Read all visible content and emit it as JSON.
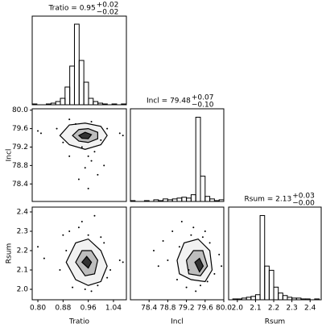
{
  "chart_data": [
    {
      "type": "histogram",
      "title": {
        "text": "Tratio = 0.95",
        "upper": "+0.02",
        "lower": "−0.02"
      },
      "bins": [
        0.78,
        0.795,
        0.81,
        0.825,
        0.84,
        0.855,
        0.87,
        0.885,
        0.9,
        0.915,
        0.93,
        0.945,
        0.96,
        0.975,
        0.99,
        1.005,
        1.02,
        1.035,
        1.05,
        1.065,
        1.08
      ],
      "values": [
        1,
        0,
        0,
        1,
        2,
        4,
        8,
        22,
        48,
        100,
        55,
        28,
        8,
        4,
        2,
        1,
        0,
        1,
        0,
        1
      ],
      "xlim": [
        0.78,
        1.081
      ],
      "ylim": [
        0,
        110
      ],
      "color": "#000000"
    },
    {
      "type": "scatter",
      "xlim": [
        0.782,
        1.081
      ],
      "ylim": [
        78.02,
        80.03
      ],
      "yticks": [
        78.4,
        78.8,
        79.2,
        79.6,
        {
          "value": 80,
          "label": "80.0"
        }
      ],
      "ylabel": "Incl",
      "points": {
        "x": [
          0.8,
          0.81,
          0.86,
          0.88,
          0.9,
          0.92,
          0.94,
          0.96,
          0.97,
          0.98,
          1.0,
          1.01,
          0.99,
          0.93,
          0.96,
          1.02,
          1.06,
          1.07,
          0.9,
          0.97,
          0.95
        ],
        "y": [
          79.55,
          79.5,
          79.6,
          79.3,
          79.0,
          79.7,
          79.2,
          79.0,
          78.9,
          79.1,
          79.35,
          78.8,
          78.6,
          78.5,
          78.3,
          79.6,
          79.5,
          79.45,
          79.8,
          79.75,
          78.75
        ]
      },
      "contours": [
        {
          "fill": "#f2f2f2",
          "x": [
            0.87,
            0.9,
            0.95,
            1.0,
            1.02,
            1.0,
            0.95,
            0.9,
            0.87
          ],
          "y": [
            79.45,
            79.68,
            79.72,
            79.65,
            79.45,
            79.25,
            79.15,
            79.25,
            79.45
          ]
        },
        {
          "fill": "#bdbdbd",
          "x": [
            0.91,
            0.93,
            0.96,
            0.99,
            0.99,
            0.96,
            0.93,
            0.91
          ],
          "y": [
            79.45,
            79.58,
            79.6,
            79.52,
            79.38,
            79.3,
            79.33,
            79.45
          ]
        },
        {
          "fill": "#333333",
          "x": [
            0.93,
            0.95,
            0.97,
            0.96,
            0.94,
            0.93
          ],
          "y": [
            79.45,
            79.52,
            79.47,
            79.38,
            79.39,
            79.45
          ]
        }
      ],
      "color": "#000000"
    },
    {
      "type": "histogram",
      "title": {
        "text": "Incl = 79.48",
        "upper": "+0.07",
        "lower": "−0.10"
      },
      "bins": [
        78.0,
        78.1,
        78.2,
        78.3,
        78.4,
        78.5,
        78.6,
        78.7,
        78.8,
        78.9,
        79.0,
        79.1,
        79.2,
        79.3,
        79.4,
        79.5,
        79.6,
        79.7,
        79.8,
        79.9,
        80.0
      ],
      "values": [
        1,
        0,
        0,
        1,
        0,
        2,
        1,
        3,
        2,
        3,
        4,
        5,
        4,
        8,
        100,
        30,
        6,
        3,
        1,
        2
      ],
      "xlim": [
        78.0,
        80.0
      ],
      "ylim": [
        0,
        110
      ],
      "color": "#000000"
    },
    {
      "type": "scatter",
      "xlim": [
        0.782,
        1.081
      ],
      "ylim": [
        1.946,
        2.425
      ],
      "xticks": [
        {
          "value": 0.8,
          "label": "0.80"
        },
        0.88,
        0.96,
        1.04
      ],
      "xlabel": "Tratio",
      "yticks": [
        {
          "value": 2,
          "label": "2.0"
        },
        2.1,
        2.2,
        2.3,
        2.4
      ],
      "ylabel": "Rsum",
      "points": {
        "x": [
          0.8,
          0.82,
          0.87,
          0.88,
          0.9,
          0.93,
          0.95,
          0.97,
          0.99,
          1.0,
          1.01,
          1.03,
          0.91,
          0.94,
          0.98,
          1.06,
          1.07,
          0.89,
          0.96,
          1.02
        ],
        "y": [
          2.22,
          2.16,
          2.1,
          2.28,
          2.3,
          2.32,
          2.0,
          1.99,
          2.02,
          2.27,
          2.24,
          2.1,
          2.01,
          2.35,
          2.38,
          2.15,
          2.14,
          2.2,
          2.28,
          2.06
        ]
      },
      "contours": [
        {
          "fill": "#f2f2f2",
          "x": [
            0.89,
            0.92,
            0.96,
            1.0,
            1.02,
            1.0,
            0.96,
            0.92,
            0.89
          ],
          "y": [
            2.14,
            2.24,
            2.26,
            2.2,
            2.12,
            2.04,
            2.02,
            2.05,
            2.14
          ]
        },
        {
          "fill": "#bdbdbd",
          "x": [
            0.92,
            0.94,
            0.97,
            0.99,
            0.98,
            0.95,
            0.92
          ],
          "y": [
            2.14,
            2.2,
            2.2,
            2.15,
            2.08,
            2.07,
            2.14
          ]
        },
        {
          "fill": "#333333",
          "x": [
            0.94,
            0.955,
            0.97,
            0.96,
            0.94
          ],
          "y": [
            2.14,
            2.17,
            2.14,
            2.11,
            2.14
          ]
        }
      ],
      "color": "#000000"
    },
    {
      "type": "scatter",
      "xlim": [
        78.0,
        80.0
      ],
      "ylim": [
        1.946,
        2.425
      ],
      "xticks": [
        78.4,
        78.8,
        79.2,
        79.6,
        {
          "value": 80,
          "label": "80.0"
        }
      ],
      "xlabel": "Incl",
      "points": {
        "x": [
          78.5,
          78.6,
          78.7,
          78.9,
          79.0,
          79.1,
          79.2,
          79.3,
          79.4,
          79.5,
          79.6,
          79.7,
          79.8,
          79.9,
          78.8,
          79.05,
          79.35,
          79.65,
          79.25,
          79.55,
          79.95
        ],
        "y": [
          2.2,
          2.12,
          2.25,
          2.3,
          2.05,
          2.35,
          2.01,
          2.28,
          1.99,
          2.02,
          2.3,
          2.24,
          2.08,
          2.18,
          2.15,
          2.22,
          2.32,
          2.04,
          2.1,
          2.27,
          2.12
        ]
      },
      "contours": [
        {
          "fill": "#f2f2f2",
          "x": [
            79.0,
            79.15,
            79.45,
            79.7,
            79.75,
            79.6,
            79.3,
            79.05,
            79.0
          ],
          "y": [
            2.15,
            2.24,
            2.26,
            2.2,
            2.1,
            2.04,
            2.05,
            2.08,
            2.15
          ]
        },
        {
          "fill": "#bdbdbd",
          "x": [
            79.2,
            79.35,
            79.55,
            79.65,
            79.5,
            79.25,
            79.2
          ],
          "y": [
            2.15,
            2.2,
            2.2,
            2.12,
            2.07,
            2.08,
            2.15
          ]
        },
        {
          "fill": "#333333",
          "x": [
            79.38,
            79.48,
            79.56,
            79.48,
            79.38
          ],
          "y": [
            2.14,
            2.16,
            2.12,
            2.09,
            2.14
          ]
        }
      ],
      "color": "#000000"
    },
    {
      "type": "histogram",
      "title": {
        "text": "Rsum = 2.13",
        "upper": "+0.03",
        "lower": "−0.00"
      },
      "bins": [
        1.95,
        1.975,
        2.0,
        2.025,
        2.05,
        2.075,
        2.1,
        2.125,
        2.15,
        2.175,
        2.2,
        2.225,
        2.25,
        2.275,
        2.3,
        2.325,
        2.35,
        2.375,
        2.4,
        2.425,
        2.45
      ],
      "values": [
        0,
        1,
        1,
        2,
        3,
        4,
        6,
        100,
        40,
        35,
        15,
        8,
        5,
        3,
        2,
        2,
        1,
        1,
        0,
        1
      ],
      "xlim": [
        1.952,
        2.461
      ],
      "ylim": [
        0,
        110
      ],
      "xticks": [
        {
          "value": 2,
          "label": "2.0"
        },
        2.1,
        2.2,
        2.3,
        2.4
      ],
      "xlabel": "Rsum",
      "color": "#000000"
    }
  ]
}
